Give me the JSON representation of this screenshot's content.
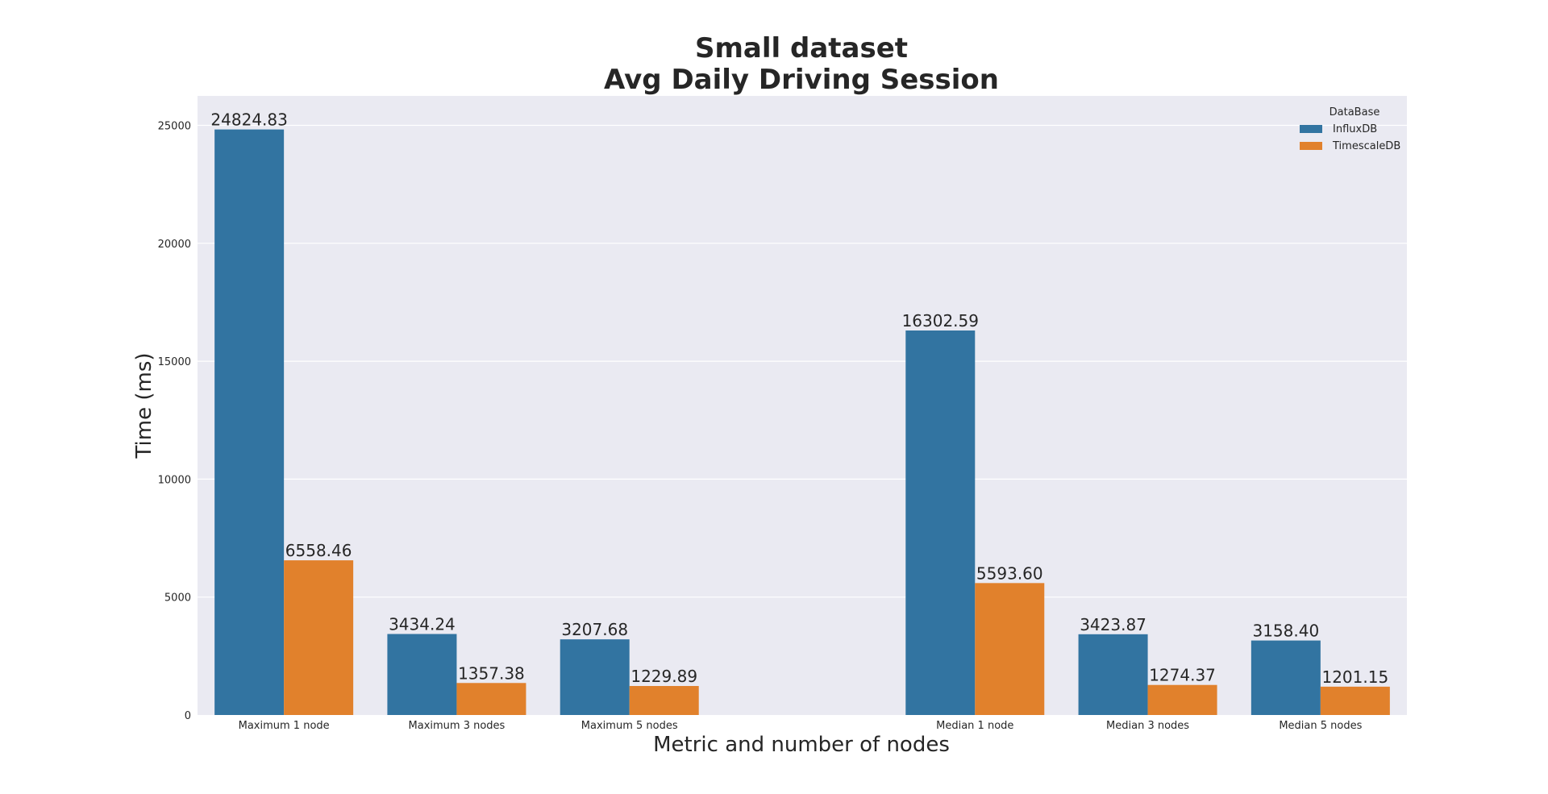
{
  "chart_data": {
    "type": "bar",
    "title": [
      "Small dataset",
      "Avg Daily Driving Session"
    ],
    "xlabel": "Metric and number of nodes",
    "ylabel": "Time (ms)",
    "ylim": [
      0,
      26000
    ],
    "yticks": [
      0,
      5000,
      10000,
      15000,
      20000,
      25000
    ],
    "grid": true,
    "legend": {
      "title": "DataBase",
      "placement": "top-right"
    },
    "categories": [
      "Maximum 1 node",
      "Maximum 3 nodes",
      "Maximum 5 nodes",
      "",
      "Median 1 node",
      "Median 3 nodes",
      "Median 5 nodes"
    ],
    "series": [
      {
        "name": "InfluxDB",
        "color": "#3274a1",
        "values": [
          24824.83,
          3434.24,
          3207.68,
          null,
          16302.59,
          3423.87,
          3158.4
        ],
        "labels": [
          "24824.83",
          "3434.24",
          "3207.68",
          "",
          "16302.59",
          "3423.87",
          "3158.40"
        ]
      },
      {
        "name": "TimescaleDB",
        "color": "#e1812c",
        "values": [
          6558.46,
          1357.38,
          1229.89,
          null,
          5593.6,
          1274.37,
          1201.15
        ],
        "labels": [
          "6558.46",
          "1357.38",
          "1229.89",
          "",
          "5593.60",
          "1274.37",
          "1201.15"
        ]
      }
    ]
  }
}
